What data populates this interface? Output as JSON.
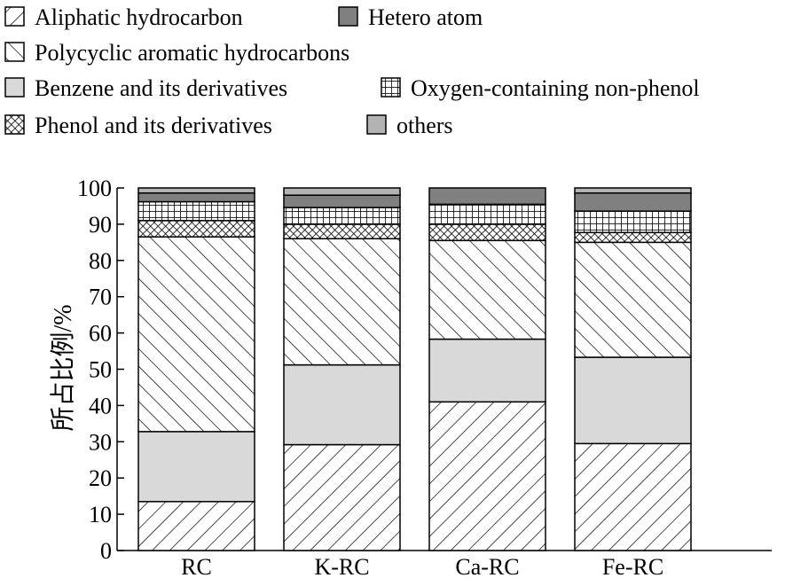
{
  "chart_data": {
    "type": "bar",
    "stacked": true,
    "title": "",
    "xlabel": "",
    "ylabel": "所占比例/%",
    "ylim": [
      0,
      100
    ],
    "yticks": [
      0,
      10,
      20,
      30,
      40,
      50,
      60,
      70,
      80,
      90,
      100
    ],
    "grid": false,
    "legend_position": "top",
    "categories": [
      "RC",
      "K-RC",
      "Ca-RC",
      "Fe-RC"
    ],
    "series": [
      {
        "name": "Aliphatic hydrocarbon",
        "pattern": "diag-right",
        "values": [
          13.5,
          29.2,
          41.0,
          29.5
        ]
      },
      {
        "name": "Benzene and its derivatives",
        "pattern": "solid-light",
        "color": "#d9d9d9",
        "values": [
          19.3,
          22.0,
          17.3,
          23.8
        ]
      },
      {
        "name": "Polycyclic aromatic hydrocarbons",
        "pattern": "diag-left",
        "values": [
          53.7,
          34.8,
          27.2,
          31.7
        ]
      },
      {
        "name": "Phenol and its derivatives",
        "pattern": "crosshatch",
        "values": [
          4.5,
          4.0,
          4.5,
          2.7
        ]
      },
      {
        "name": "Oxygen-containing non-phenol",
        "pattern": "grid",
        "values": [
          5.2,
          4.6,
          5.5,
          5.9
        ]
      },
      {
        "name": "Hetero atom",
        "pattern": "solid-dark",
        "color": "#808080",
        "values": [
          2.4,
          3.4,
          4.5,
          5.0
        ]
      },
      {
        "name": "others",
        "pattern": "solid-mid",
        "color": "#b3b3b3",
        "values": [
          1.4,
          2.0,
          0.0,
          1.4
        ]
      }
    ]
  }
}
